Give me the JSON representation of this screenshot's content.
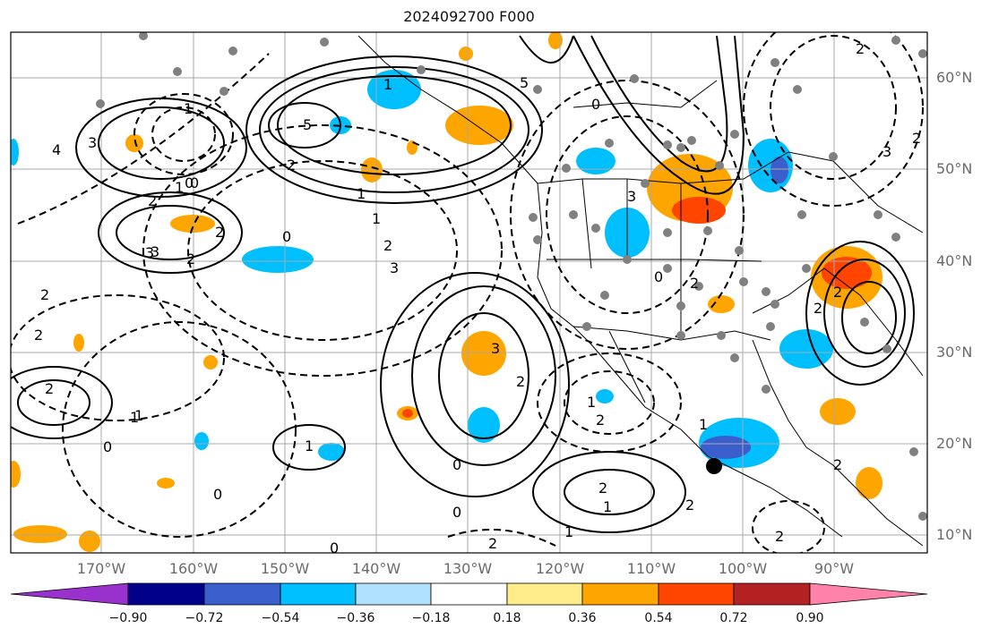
{
  "title": "2024092700 F000",
  "lat_labels": [
    "60°N",
    "50°N",
    "40°N",
    "30°N",
    "20°N",
    "10°N"
  ],
  "lon_labels": [
    "170°W",
    "160°W",
    "150°W",
    "140°W",
    "130°W",
    "120°W",
    "110°W",
    "100°W",
    "90°W"
  ],
  "contour_labels": {
    "solid": [
      "5",
      "2",
      "1",
      "0",
      "2",
      "3",
      "2",
      "5",
      "2",
      "1",
      "3",
      "2",
      "0",
      "1",
      "2",
      "1",
      "2",
      "3",
      "2",
      "0",
      "2",
      "1",
      "1",
      "1",
      "0"
    ],
    "dashed": [
      "0",
      "4",
      "3",
      "2",
      "1",
      "0",
      "2",
      "3",
      "2",
      "0",
      "2",
      "3",
      "2",
      "2",
      "1",
      "2",
      "2",
      "1",
      "0",
      "0",
      "0",
      "2",
      "1",
      "2",
      "2",
      "3",
      "1"
    ]
  },
  "colorbar": {
    "ticks": [
      "−0.90",
      "−0.72",
      "−0.54",
      "−0.36",
      "−0.18",
      "0.18",
      "0.36",
      "0.54",
      "0.72",
      "0.90"
    ],
    "colors": [
      "#9932cc",
      "#00008b",
      "#3a5fcd",
      "#00bfff",
      "#b0e2ff",
      "#ffffff",
      "#ffec8b",
      "#ffa500",
      "#ff4500",
      "#b22222",
      "#ff82ab"
    ]
  },
  "colors": {
    "land_border": "#000000",
    "station_dot": "#808080",
    "grid": "#a9a9a9",
    "axis_label": "#6b6b6b"
  }
}
